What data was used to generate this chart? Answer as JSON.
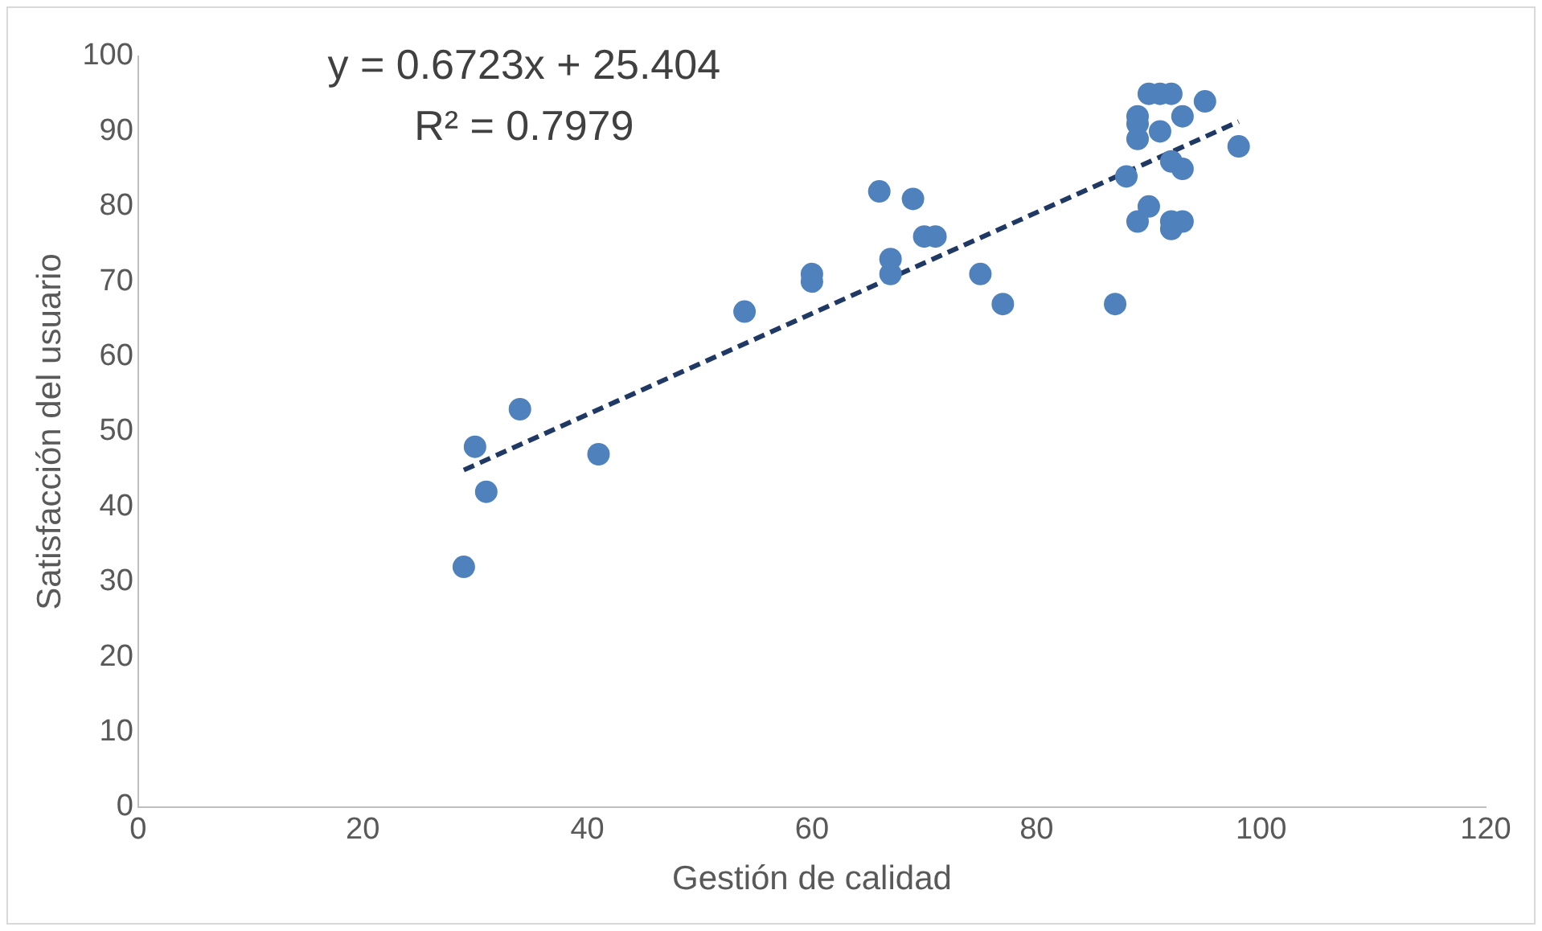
{
  "chart_data": {
    "type": "scatter",
    "xlabel": "Gestión de calidad",
    "ylabel": "Satisfacción del usuario",
    "annotations": [
      "y = 0.6723x + 25.404",
      "R² = 0.7979"
    ],
    "series": [
      {
        "color": "#4f81bd",
        "marker": "circle",
        "x": [
          29,
          30,
          31,
          34,
          41,
          54,
          60,
          60,
          66,
          67,
          67,
          69,
          70,
          71,
          75,
          77,
          87,
          88,
          89,
          89,
          89,
          89,
          90,
          90,
          91,
          91,
          92,
          92,
          92,
          92,
          93,
          93,
          93,
          95,
          98
        ],
        "values": [
          32,
          48,
          42,
          53,
          47,
          66,
          71,
          70,
          82,
          73,
          71,
          81,
          76,
          76,
          71,
          67,
          67,
          84,
          92,
          91,
          89,
          78,
          95,
          80,
          95,
          90,
          95,
          86,
          78,
          77,
          92,
          85,
          78,
          94,
          88
        ]
      },
      {
        "type": "line",
        "color": "#1f3864",
        "line_style": "dashed",
        "marker": "none",
        "x": [
          29,
          98
        ],
        "values": [
          44.9,
          91.3
        ]
      }
    ],
    "xlim": [
      0,
      120
    ],
    "xticks": [
      0,
      20,
      40,
      60,
      80,
      100,
      120
    ],
    "ylim": [
      0,
      100
    ],
    "yticks": [
      0,
      10,
      20,
      30,
      40,
      50,
      60,
      70,
      80,
      90,
      100
    ],
    "grid": false,
    "legend": false
  }
}
